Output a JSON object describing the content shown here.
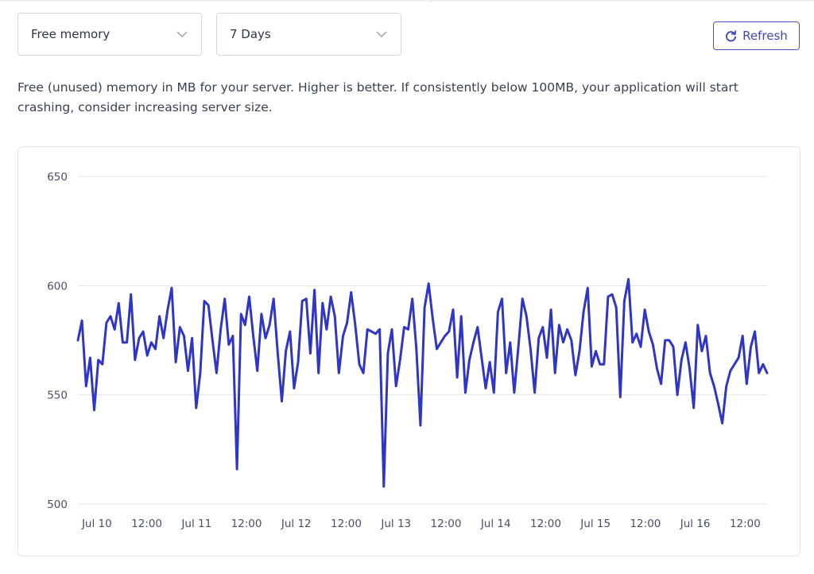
{
  "controls": {
    "metric_select": "Free memory",
    "range_select": "7 Days",
    "refresh_label": "Refresh"
  },
  "description": "Free (unused) memory in MB for your server. Higher is better. If consistently below 100MB, your application will start crashing, consider increasing server size.",
  "colors": {
    "series": "#2f36c6",
    "grid": "#e4e6ec",
    "accent": "#3e45c0"
  },
  "icons": {
    "select_chevron": "chevron-down-icon",
    "refresh": "refresh-icon"
  },
  "chart_data": {
    "type": "line",
    "ylim": [
      500,
      650
    ],
    "y_ticks": [
      500,
      550,
      600,
      650
    ],
    "x_tick_labels": [
      "Jul 10",
      "12:00",
      "Jul 11",
      "12:00",
      "Jul 12",
      "12:00",
      "Jul 13",
      "12:00",
      "Jul 14",
      "12:00",
      "Jul 15",
      "12:00",
      "Jul 16",
      "12:00"
    ],
    "x_range_days": [
      9.81,
      16.72
    ],
    "grid": true,
    "series": [
      {
        "values": [
          575,
          584,
          554,
          567,
          543,
          566,
          564,
          583,
          586,
          580,
          592,
          574,
          574,
          596,
          566,
          576,
          579,
          568,
          574,
          571,
          586,
          576,
          589,
          599,
          565,
          581,
          577,
          561,
          576,
          544,
          560,
          593,
          591,
          575,
          560,
          580,
          594,
          573,
          577,
          516,
          587,
          582,
          595,
          577,
          561,
          587,
          576,
          582,
          594,
          569,
          547,
          570,
          579,
          553,
          565,
          593,
          594,
          569,
          598,
          560,
          592,
          580,
          595,
          586,
          560,
          577,
          583,
          597,
          582,
          564,
          560,
          580,
          579,
          578,
          580,
          508,
          569,
          580,
          554,
          566,
          581,
          580,
          594,
          571,
          536,
          590,
          601,
          585,
          571,
          574,
          577,
          579,
          589,
          558,
          586,
          551,
          566,
          574,
          581,
          567,
          553,
          565,
          551,
          588,
          594,
          560,
          574,
          551,
          572,
          594,
          586,
          571,
          551,
          576,
          581,
          567,
          589,
          560,
          582,
          574,
          580,
          575,
          559,
          570,
          588,
          599,
          563,
          570,
          564,
          564,
          595,
          596,
          590,
          549,
          593,
          603,
          574,
          578,
          572,
          589,
          579,
          573,
          562,
          555,
          575,
          575,
          572,
          550,
          566,
          574,
          562,
          544,
          582,
          570,
          577,
          560,
          554,
          546,
          537,
          554,
          561,
          564,
          567,
          577,
          555,
          572,
          579,
          560,
          564,
          560
        ]
      }
    ]
  }
}
